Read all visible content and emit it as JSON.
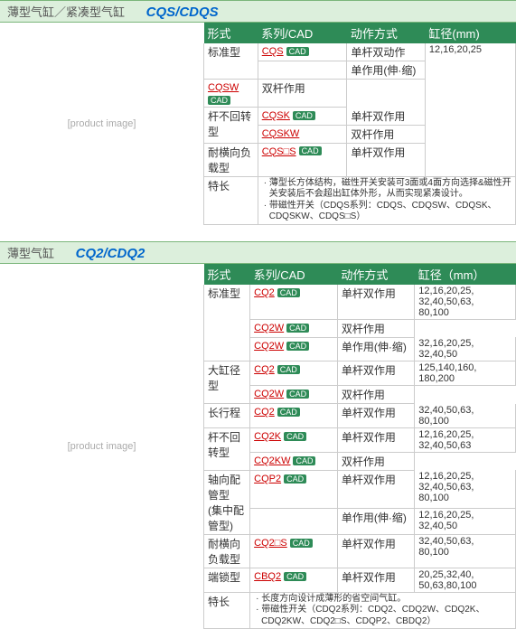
{
  "s1": {
    "title_cn": "薄型气缸／紧凑型气缸",
    "code": "CQS/CDQS",
    "cols": [
      "形式",
      "系列/CAD",
      "动作方式",
      "缸径(mm)"
    ],
    "img": "[product image]",
    "r": [
      {
        "f": "标准型",
        "s": "CQS",
        "cad": 1,
        "a": "单杆双动作",
        "rs": 2,
        "b": "12,16,20,25",
        "brs": 6
      },
      {
        "a": "单作用(伸·缩)"
      },
      {
        "s": "CQSW",
        "cad": 1,
        "a": "双杆作用"
      },
      {
        "f": "杆不回转型",
        "s": "CQSK",
        "cad": 1,
        "a": "单杆双作用",
        "rs": 2
      },
      {
        "s": "CQSKW",
        "a": "双杆作用"
      },
      {
        "f": "耐横向负载型",
        "s": "CQS□S",
        "cad": 1,
        "a": "单杆双作用"
      }
    ],
    "feat_label": "特长",
    "feat": [
      "· 薄型长方体结构，磁性开关安装可3面或4面方向选择&磁性开关安装后不会超出缸体外形，从而实现紧凑设计。",
      "· 带磁性开关（CDQS系列：CDQS、CDQSW、CDQSK、CDQSKW、CDQS□S）"
    ]
  },
  "s2": {
    "title_cn": "薄型气缸",
    "code": "CQ2/CDQ2",
    "cols": [
      "形式",
      "系列/CAD",
      "动作方式",
      "缸径（mm）"
    ],
    "img": "[product image]",
    "r": [
      {
        "f": "标准型",
        "s": "CQ2",
        "cad": 1,
        "a": "单杆双作用",
        "rs": 3,
        "b": "12,16,20,25,\n32,40,50,63,\n80,100"
      },
      {
        "s": "CQ2W",
        "cad": 1,
        "a": "双杆作用"
      },
      {
        "s": "CQ2W",
        "cad": 1,
        "a": "单作用(伸·缩)",
        "b": "32,16,20,25,\n32,40,50"
      },
      {
        "f": "大缸径型",
        "s": "CQ2",
        "cad": 1,
        "a": "单杆双作用",
        "rs": 2,
        "b": "125,140,160,\n180,200"
      },
      {
        "s": "CQ2W",
        "cad": 1,
        "a": "双杆作用"
      },
      {
        "f": "长行程",
        "s": "CQ2",
        "cad": 1,
        "a": "单杆双作用",
        "b": "32,40,50,63,\n80,100"
      },
      {
        "f": "杆不回转型",
        "s": "CQ2K",
        "cad": 1,
        "a": "单杆双作用",
        "rs": 2,
        "b": "12,16,20,25,\n32,40,50,63"
      },
      {
        "s": "CQ2KW",
        "cad": 1,
        "a": "双杆作用"
      },
      {
        "f": "轴向配管型\n(集中配管型)",
        "s": "CQP2",
        "cad": 1,
        "a": "单杆双作用",
        "rs": 2,
        "b": "12,16,20,25,\n32,40,50,63,\n80,100"
      },
      {
        "a": "单作用(伸·缩)",
        "b": "12,16,20,25,\n32,40,50"
      },
      {
        "f": "耐横向负载型",
        "s": "CQ2□S",
        "cad": 1,
        "a": "单杆双作用",
        "b": "32,40,50,63,\n80,100"
      },
      {
        "f": "端锁型",
        "s": "CBQ2",
        "cad": 1,
        "a": "单杆双作用",
        "b": "20,25,32,40,\n50,63,80,100"
      }
    ],
    "feat_label": "特长",
    "feat": [
      "· 长度方向设计成薄形的省空间气缸。",
      "· 带磁性开关（CDQ2系列：CDQ2、CDQ2W、CDQ2K、CDQ2KW、CDQ2□S、CDQP2、CBDQ2）"
    ]
  }
}
